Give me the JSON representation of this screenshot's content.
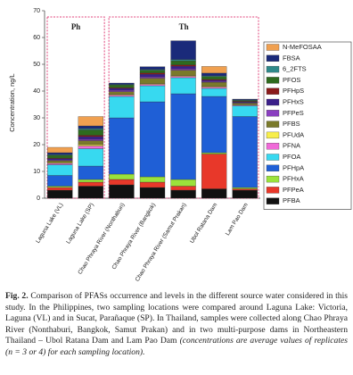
{
  "chart_data": {
    "type": "stacked_bar",
    "y_label": "Concentration, ng/L",
    "annotations": [
      "Ph",
      "Th"
    ],
    "categories": [
      "Laguna Lake (VL)",
      "Laguna Lake (SP)",
      "Chao Phraya River (Nonthaburi)",
      "Chao Phraya River (Bangkok)",
      "Chao Phraya River (Samut Prakan)",
      "Ubol Ratana Dam",
      "Lam Pao Dam"
    ],
    "ylim": [
      0,
      70
    ],
    "yticks": [
      0,
      10,
      20,
      30,
      40,
      50,
      60,
      70
    ],
    "legend": "right",
    "series": [
      {
        "name": "PFBA",
        "color": "#111111",
        "values": [
          3,
          4.5,
          5,
          4,
          3,
          3.5,
          3
        ]
      },
      {
        "name": "PFPeA",
        "color": "#e8382a",
        "values": [
          1,
          1.5,
          2,
          2,
          1.5,
          13,
          0.5
        ]
      },
      {
        "name": "PFHxA",
        "color": "#9be33b",
        "values": [
          0.5,
          1,
          2,
          2,
          2.5,
          0.5,
          0.5
        ]
      },
      {
        "name": "PFHpA",
        "color": "#1f5fd6",
        "values": [
          4,
          5,
          21,
          28,
          32,
          21,
          26.5
        ]
      },
      {
        "name": "PFOA",
        "color": "#37d9f0",
        "values": [
          4,
          6.5,
          8,
          6,
          6,
          3,
          4
        ]
      },
      {
        "name": "PFNA",
        "color": "#f06ad8",
        "values": [
          0.5,
          1,
          0.5,
          0.5,
          0.5,
          0.5,
          0.3
        ]
      },
      {
        "name": "PFUdA",
        "color": "#f7ee4a",
        "values": [
          0.3,
          0.5,
          0.3,
          0.3,
          0.3,
          0.3,
          0.2
        ]
      },
      {
        "name": "PFBS",
        "color": "#7a7a2a",
        "values": [
          0.7,
          1.5,
          1,
          2,
          2,
          1.5,
          0.5
        ]
      },
      {
        "name": "PFPeS",
        "color": "#8a3fc0",
        "values": [
          0.3,
          0.5,
          0.5,
          0.5,
          0.5,
          0.3,
          0.2
        ]
      },
      {
        "name": "PFHxS",
        "color": "#3b1f8a",
        "values": [
          0.5,
          1,
          0.7,
          1,
          1,
          0.5,
          0.3
        ]
      },
      {
        "name": "PFHpS",
        "color": "#8b1a1a",
        "values": [
          0.2,
          0.5,
          0.3,
          0.5,
          0.5,
          0.3,
          0.2
        ]
      },
      {
        "name": "PFOS",
        "color": "#2e6b1e",
        "values": [
          1,
          2,
          1,
          1,
          1.5,
          1,
          0.3
        ]
      },
      {
        "name": "6_2FTS",
        "color": "#2f8a8a",
        "values": [
          0.3,
          0.5,
          0.2,
          0.3,
          0.5,
          0.3,
          0.2
        ]
      },
      {
        "name": "FBSA",
        "color": "#1a2a7a",
        "values": [
          0.7,
          1,
          0.5,
          1,
          7,
          1,
          0.3
        ]
      },
      {
        "name": "N-MeFOSAA",
        "color": "#f0a050",
        "values": [
          2,
          3.5,
          0,
          0,
          0,
          2.5,
          0
        ]
      }
    ]
  },
  "caption": {
    "label": "Fig. 2.",
    "text": "Comparison of PFASs occurrence and levels in the different source water considered in this study. In the Philippines, two sampling locations were compared around Laguna Lake: Victoria, Laguna (VL) and in Sucat, Parañaque (SP). In Thailand, samples were collected along Chao Phraya River (Nonthaburi, Bangkok, Samut Prakan) and in two multi-purpose dams in Northeastern Thailand – Ubol Ratana Dam and Lam Pao Dam",
    "note": "(concentrations are average values of replicates (n = 3 or 4) for each sampling location)."
  }
}
